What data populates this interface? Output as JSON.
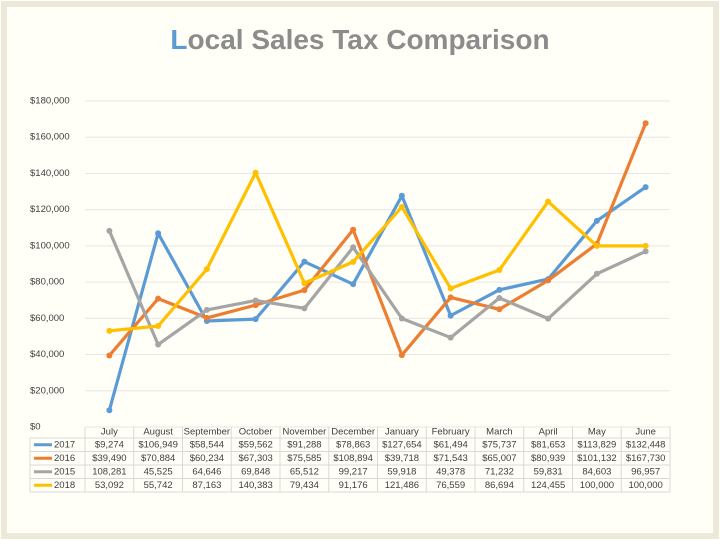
{
  "chart_data": {
    "type": "line",
    "title": "Local Sales Tax Comparison",
    "categories": [
      "July",
      "August",
      "September",
      "October",
      "November",
      "December",
      "January",
      "February",
      "March",
      "April",
      "May",
      "June"
    ],
    "series": [
      {
        "name": "2017",
        "color": "#5b9bd5",
        "values": [
          9274,
          106949,
          58544,
          59562,
          91288,
          78863,
          127654,
          61494,
          75737,
          81653,
          113829,
          132448
        ],
        "value_labels": [
          "$9,274",
          "$106,949",
          "$58,544",
          "$59,562",
          "$91,288",
          "$78,863",
          "$127,654",
          "$61,494",
          "$75,737",
          "$81,653",
          "$113,829",
          "$132,448"
        ]
      },
      {
        "name": "2016",
        "color": "#ed7d31",
        "values": [
          39490,
          70884,
          60234,
          67303,
          75585,
          108894,
          39718,
          71543,
          65007,
          80939,
          101132,
          167730
        ],
        "value_labels": [
          "$39,490",
          "$70,884",
          "$60,234",
          "$67,303",
          "$75,585",
          "$108,894",
          "$39,718",
          "$71,543",
          "$65,007",
          "$80,939",
          "$101,132",
          "$167,730"
        ]
      },
      {
        "name": "2015",
        "color": "#a5a5a5",
        "values": [
          108281,
          45525,
          64646,
          69848,
          65512,
          99217,
          59918,
          49378,
          71232,
          59831,
          84603,
          96957
        ],
        "value_labels": [
          "108,281",
          "45,525",
          "64,646",
          "69,848",
          "65,512",
          "99,217",
          "59,918",
          "49,378",
          "71,232",
          "59,831",
          "84,603",
          "96,957"
        ]
      },
      {
        "name": "2018",
        "color": "#ffc000",
        "values": [
          53092,
          55742,
          87163,
          140383,
          79434,
          91176,
          121486,
          76559,
          86694,
          124455,
          100000,
          100000
        ],
        "value_labels": [
          "53,092",
          "55,742",
          "87,163",
          "140,383",
          "79,434",
          "91,176",
          "121,486",
          "76,559",
          "86,694",
          "124,455",
          "100,000",
          "100,000"
        ]
      }
    ],
    "ylim": [
      0,
      180000
    ],
    "yticks": [
      {
        "value": 0,
        "label": "$0"
      },
      {
        "value": 20000,
        "label": "$20,000"
      },
      {
        "value": 40000,
        "label": "$40,000"
      },
      {
        "value": 60000,
        "label": "$60,000"
      },
      {
        "value": 80000,
        "label": "$80,000"
      },
      {
        "value": 100000,
        "label": "$100,000"
      },
      {
        "value": 120000,
        "label": "$120,000"
      },
      {
        "value": 140000,
        "label": "$140,000"
      },
      {
        "value": 160000,
        "label": "$160,000"
      },
      {
        "value": 180000,
        "label": "$180,000"
      }
    ],
    "grid": true
  }
}
